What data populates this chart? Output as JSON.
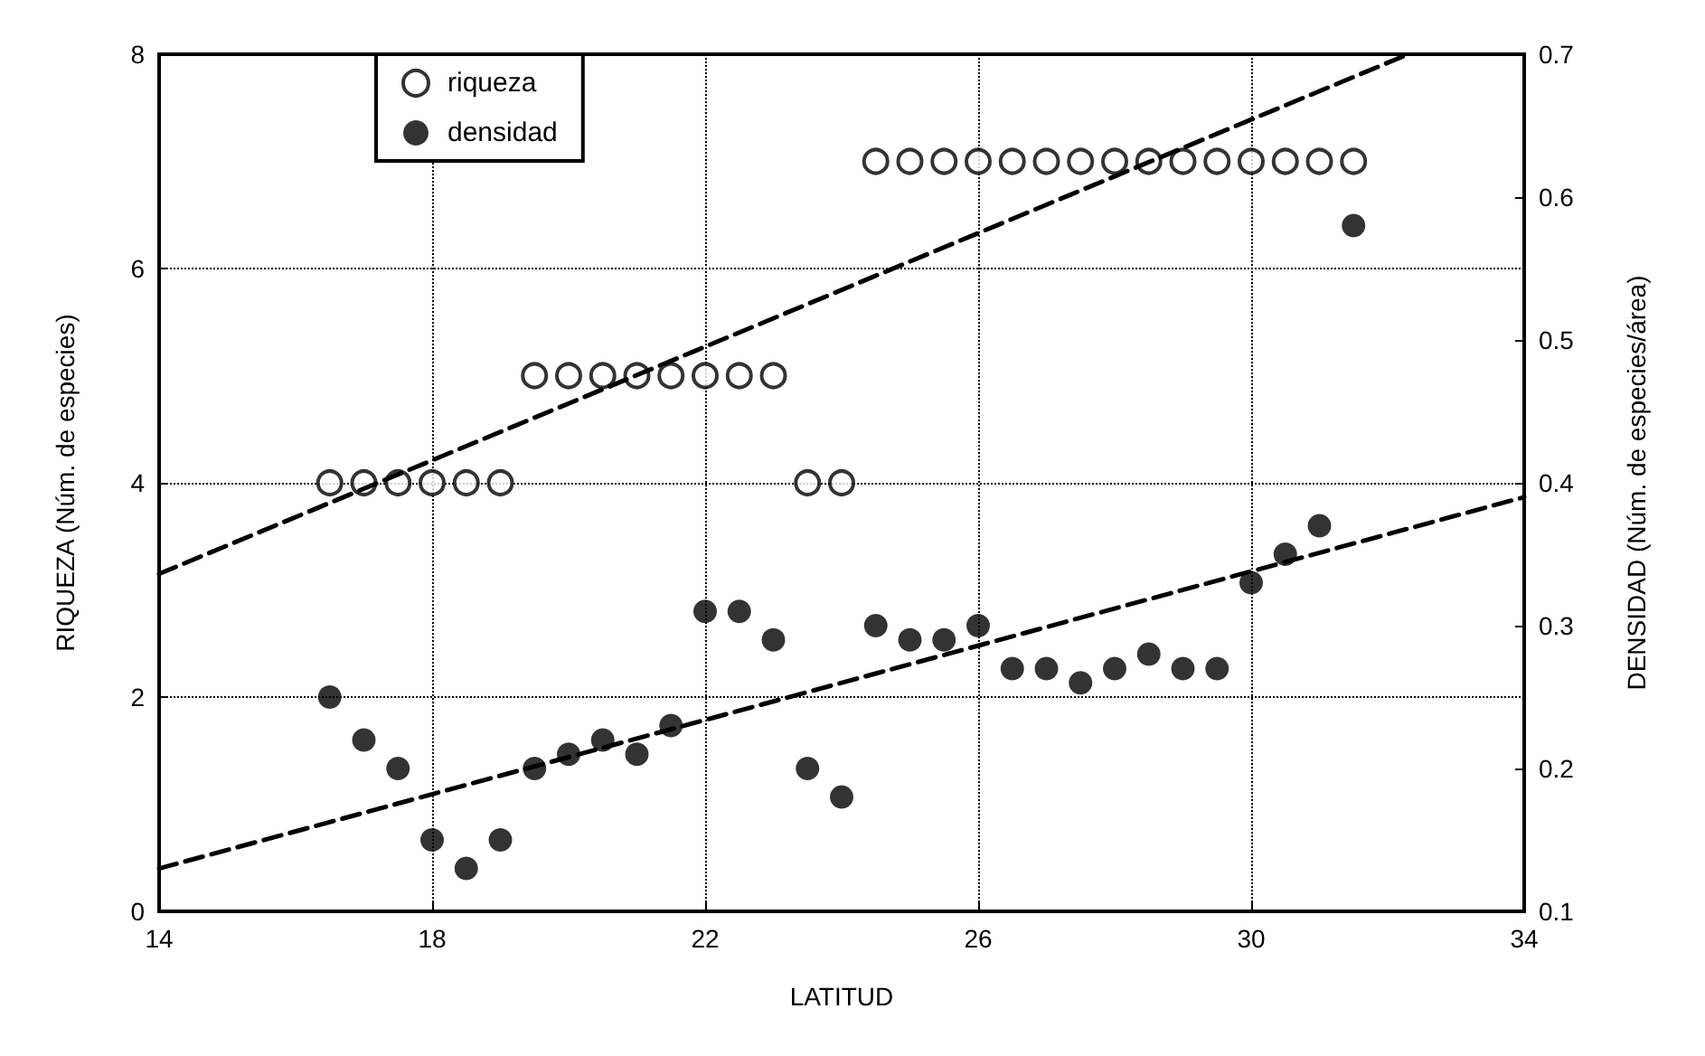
{
  "chart_data": {
    "type": "scatter",
    "xlabel": "LATITUD",
    "ylabel": "RIQUEZA (Núm. de especies)",
    "y2label": "DENSIDAD (Núm. de especies/área)",
    "xlim": [
      14,
      34
    ],
    "xticks": [
      14,
      18,
      22,
      26,
      30,
      34
    ],
    "ylim": [
      0,
      8
    ],
    "yticks": [
      0,
      2,
      4,
      6,
      8
    ],
    "y2lim": [
      0.1,
      0.7
    ],
    "y2ticks": [
      0.1,
      0.2,
      0.3,
      0.4,
      0.5,
      0.6,
      0.7
    ],
    "grid": true,
    "legend": "top left",
    "marker": "circle",
    "series": [
      {
        "name": "riqueza",
        "color": "#000000",
        "x": [
          16.5,
          17,
          17.5,
          18,
          18.5,
          19,
          19.5,
          20,
          20.5,
          21,
          21.5,
          22,
          22.5,
          23,
          23.5,
          24,
          24.5,
          25,
          25.5,
          26,
          26.5,
          27,
          27.5,
          28,
          28.5,
          29,
          29.5,
          30,
          30.5,
          31,
          31.5
        ],
        "values": [
          4,
          4,
          4,
          4,
          4,
          4,
          5,
          5,
          5,
          5,
          5,
          5,
          5,
          5,
          4,
          4,
          7,
          7,
          7,
          7,
          7,
          7,
          7,
          7,
          7,
          7,
          7,
          7,
          7,
          7,
          7
        ]
      },
      {
        "name": "densidad",
        "color": "#000000",
        "axis": "y2",
        "x": [
          16.5,
          17,
          17.5,
          18,
          18.5,
          19,
          19.5,
          20,
          20.5,
          21,
          21.5,
          22,
          22.5,
          23,
          23.5,
          24,
          24.5,
          25,
          25.5,
          26,
          26.5,
          27,
          27.5,
          28,
          28.5,
          29,
          29.5,
          30,
          30.5,
          31,
          31.5
        ],
        "values": [
          0.25,
          0.22,
          0.2,
          0.15,
          0.13,
          0.15,
          0.2,
          0.21,
          0.22,
          0.21,
          0.23,
          0.31,
          0.31,
          0.29,
          0.2,
          0.18,
          0.3,
          0.29,
          0.29,
          0.3,
          0.27,
          0.27,
          0.26,
          0.27,
          0.28,
          0.27,
          0.27,
          0.33,
          0.35,
          0.37,
          0.58
        ]
      },
      {
        "type": "line",
        "color": "#000000",
        "line_style": "dashed",
        "marker": "none",
        "x": [
          14,
          32.3
        ],
        "values": [
          3.15,
          8
        ]
      },
      {
        "type": "line",
        "color": "#000000",
        "line_style": "dashed",
        "marker": "none",
        "axis": "y2",
        "x": [
          14,
          34
        ],
        "values": [
          0.13,
          0.39
        ]
      }
    ]
  }
}
